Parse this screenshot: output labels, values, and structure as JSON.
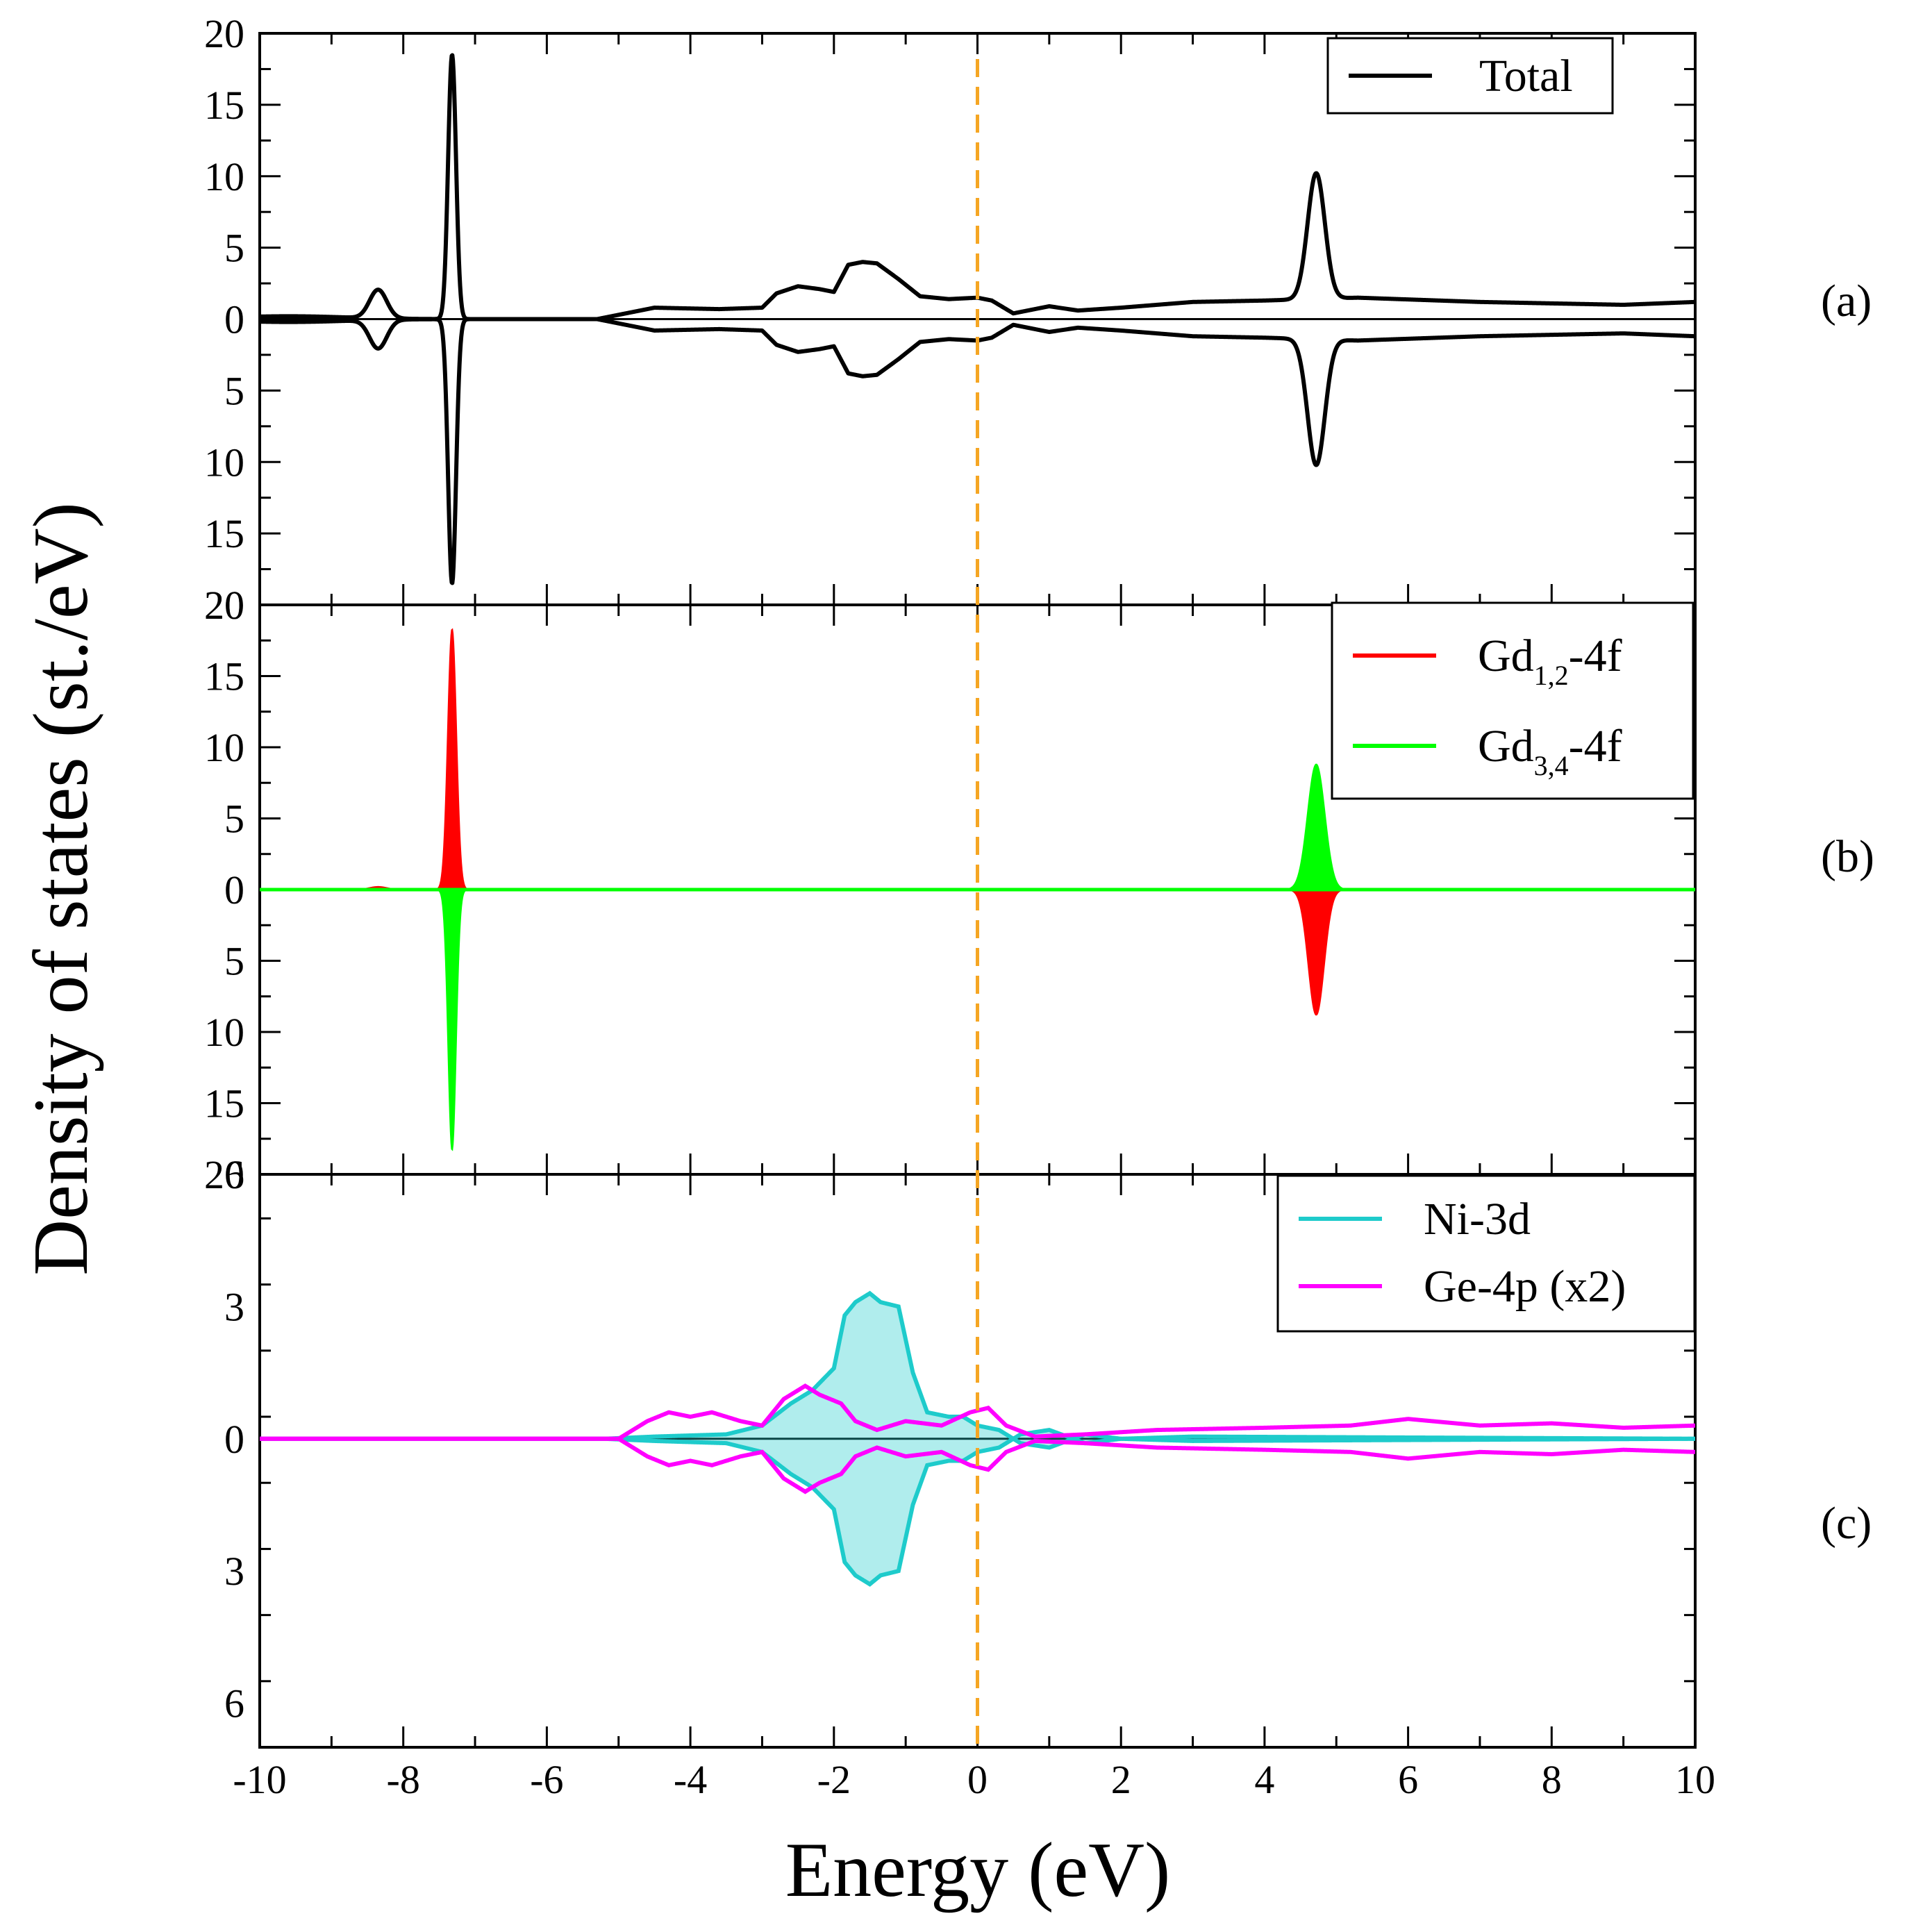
{
  "chart_data": {
    "type": "line",
    "xlabel": "Energy (eV)",
    "ylabel": "Density of states (st./eV)",
    "xlim": [
      -10,
      10
    ],
    "x_ticks": [
      -10,
      -8,
      -6,
      -4,
      -2,
      0,
      2,
      4,
      6,
      8,
      10
    ],
    "x_tick_labels": [
      "-10",
      "-8",
      "-6",
      "-4",
      "-2",
      "0",
      "2",
      "4",
      "6",
      "8",
      "10"
    ],
    "fermi_level": 0,
    "fermi_color": "#f5a623",
    "panels": [
      {
        "id": "a",
        "label": "(a)",
        "ylim": [
          -20,
          20
        ],
        "y_ticks": [
          20,
          15,
          10,
          5,
          0,
          -5,
          -10,
          -15,
          -20
        ],
        "y_tick_labels": [
          "20",
          "15",
          "10",
          "5",
          "0",
          "5",
          "10",
          "15",
          "20"
        ],
        "legend": [
          {
            "label": "Total",
            "color": "#000000"
          }
        ],
        "series": [
          {
            "name": "Total",
            "color": "#000000",
            "fill": false,
            "peaks": [
              {
                "center": -9.6,
                "height": 0.2,
                "width": 0.8
              },
              {
                "center": -8.35,
                "height": 2.0,
                "width": 0.12
              },
              {
                "center": -7.32,
                "height": 18.5,
                "width": 0.055
              },
              {
                "center": 4.72,
                "height": 8.8,
                "width": 0.12
              }
            ],
            "base": [
              [
                -10,
                0.0
              ],
              [
                -5.3,
                0.0
              ],
              [
                -4.5,
                0.8
              ],
              [
                -3.6,
                0.7
              ],
              [
                -3.0,
                0.8
              ],
              [
                -2.8,
                1.8
              ],
              [
                -2.5,
                2.3
              ],
              [
                -2.2,
                2.1
              ],
              [
                -2.0,
                1.9
              ],
              [
                -1.8,
                3.8
              ],
              [
                -1.6,
                4.0
              ],
              [
                -1.4,
                3.9
              ],
              [
                -1.1,
                2.8
              ],
              [
                -0.8,
                1.6
              ],
              [
                -0.4,
                1.4
              ],
              [
                0.0,
                1.5
              ],
              [
                0.2,
                1.3
              ],
              [
                0.5,
                0.4
              ],
              [
                1.0,
                0.9
              ],
              [
                1.4,
                0.6
              ],
              [
                2.0,
                0.8
              ],
              [
                3.0,
                1.2
              ],
              [
                4.0,
                1.3
              ],
              [
                5.3,
                1.5
              ],
              [
                7.0,
                1.2
              ],
              [
                9.0,
                1.0
              ],
              [
                10.0,
                1.2
              ]
            ]
          }
        ]
      },
      {
        "id": "b",
        "label": "(b)",
        "ylim": [
          -20,
          20
        ],
        "y_ticks": [
          20,
          15,
          10,
          5,
          0,
          -5,
          -10,
          -15,
          -20
        ],
        "y_tick_labels": [
          "20",
          "15",
          "10",
          "5",
          "0",
          "5",
          "10",
          "15",
          "20"
        ],
        "legend": [
          {
            "label": "Gd",
            "sub": "1,2",
            "suffix": "-4f",
            "color": "#ff0000"
          },
          {
            "label": "Gd",
            "sub": "3,4",
            "suffix": "-4f",
            "color": "#00ff00"
          }
        ],
        "series": [
          {
            "name": "Gd1,2-4f up",
            "color": "#ff0000",
            "fill": true,
            "sign": 1,
            "peaks": [
              {
                "center": -7.32,
                "height": 18.3,
                "width": 0.06
              },
              {
                "center": -8.35,
                "height": 0.2,
                "width": 0.12
              }
            ]
          },
          {
            "name": "Gd3,4-4f up",
            "color": "#00ff00",
            "fill": true,
            "sign": 1,
            "peaks": [
              {
                "center": 4.72,
                "height": 8.8,
                "width": 0.12
              }
            ]
          },
          {
            "name": "Gd3,4-4f down",
            "color": "#00ff00",
            "fill": true,
            "sign": -1,
            "peaks": [
              {
                "center": -7.32,
                "height": 18.3,
                "width": 0.055
              }
            ]
          },
          {
            "name": "Gd1,2-4f down",
            "color": "#ff0000",
            "fill": true,
            "sign": -1,
            "peaks": [
              {
                "center": 4.72,
                "height": 8.8,
                "width": 0.11
              }
            ]
          }
        ]
      },
      {
        "id": "c",
        "label": "(c)",
        "ylim": [
          -7,
          6
        ]
      }
    ],
    "panel_c": {
      "ylim": [
        -7,
        6
      ],
      "y_ticks": [
        6,
        3,
        0,
        -3,
        -6
      ],
      "y_tick_labels": [
        "6",
        "3",
        "0",
        "3",
        "6"
      ],
      "legend": [
        {
          "label": "Ni-3d",
          "color": "#1ecbcb"
        },
        {
          "label": "Ge-4p (x2)",
          "color": "#ff00ff"
        }
      ],
      "series": [
        {
          "name": "Ni-3d",
          "color": "#1ecbcb",
          "fill": true,
          "points": [
            [
              -10,
              0.0
            ],
            [
              -5.2,
              0.0
            ],
            [
              -4.5,
              0.05
            ],
            [
              -3.5,
              0.1
            ],
            [
              -3.0,
              0.3
            ],
            [
              -2.6,
              0.8
            ],
            [
              -2.3,
              1.1
            ],
            [
              -2.0,
              1.6
            ],
            [
              -1.85,
              2.8
            ],
            [
              -1.7,
              3.1
            ],
            [
              -1.5,
              3.3
            ],
            [
              -1.35,
              3.1
            ],
            [
              -1.1,
              3.0
            ],
            [
              -0.9,
              1.5
            ],
            [
              -0.7,
              0.6
            ],
            [
              -0.4,
              0.5
            ],
            [
              -0.2,
              0.5
            ],
            [
              0.0,
              0.3
            ],
            [
              0.3,
              0.2
            ],
            [
              0.6,
              -0.1
            ],
            [
              1.0,
              -0.2
            ],
            [
              1.5,
              0.1
            ],
            [
              2.0,
              0.0
            ],
            [
              3.0,
              0.05
            ],
            [
              10.0,
              0.0
            ]
          ]
        },
        {
          "name": "Ge-4p (x2)",
          "color": "#ff00ff",
          "fill": false,
          "points": [
            [
              -10,
              0.0
            ],
            [
              -5.0,
              0.0
            ],
            [
              -4.6,
              0.4
            ],
            [
              -4.3,
              0.6
            ],
            [
              -4.0,
              0.5
            ],
            [
              -3.7,
              0.6
            ],
            [
              -3.3,
              0.4
            ],
            [
              -3.0,
              0.3
            ],
            [
              -2.7,
              0.9
            ],
            [
              -2.4,
              1.2
            ],
            [
              -2.2,
              1.0
            ],
            [
              -1.9,
              0.8
            ],
            [
              -1.7,
              0.4
            ],
            [
              -1.4,
              0.2
            ],
            [
              -1.0,
              0.4
            ],
            [
              -0.5,
              0.3
            ],
            [
              -0.1,
              0.6
            ],
            [
              0.15,
              0.7
            ],
            [
              0.4,
              0.3
            ],
            [
              0.8,
              0.05
            ],
            [
              1.5,
              0.1
            ],
            [
              2.5,
              0.2
            ],
            [
              4.0,
              0.25
            ],
            [
              5.2,
              0.3
            ],
            [
              6.0,
              0.45
            ],
            [
              7.0,
              0.3
            ],
            [
              8.0,
              0.35
            ],
            [
              9.0,
              0.25
            ],
            [
              10.0,
              0.3
            ]
          ]
        }
      ]
    }
  }
}
